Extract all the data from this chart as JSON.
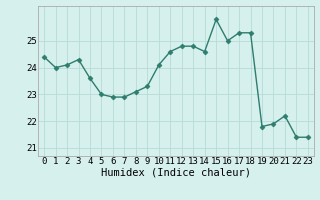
{
  "x": [
    0,
    1,
    2,
    3,
    4,
    5,
    6,
    7,
    8,
    9,
    10,
    11,
    12,
    13,
    14,
    15,
    16,
    17,
    18,
    19,
    20,
    21,
    22,
    23
  ],
  "y": [
    24.4,
    24.0,
    24.1,
    24.3,
    23.6,
    23.0,
    22.9,
    22.9,
    23.1,
    23.3,
    24.1,
    24.6,
    24.8,
    24.8,
    24.6,
    25.8,
    25.0,
    25.3,
    25.3,
    21.8,
    21.9,
    22.2,
    21.4,
    21.4
  ],
  "line_color": "#2e7d6e",
  "marker": "D",
  "marker_size": 2.5,
  "bg_color": "#d6f0ee",
  "grid_color": "#b8dbd8",
  "xlabel": "Humidex (Indice chaleur)",
  "xlabel_fontsize": 7.5,
  "tick_fontsize": 6.5,
  "ylim": [
    20.7,
    26.3
  ],
  "yticks": [
    21,
    22,
    23,
    24,
    25
  ],
  "xticks": [
    0,
    1,
    2,
    3,
    4,
    5,
    6,
    7,
    8,
    9,
    10,
    11,
    12,
    13,
    14,
    15,
    16,
    17,
    18,
    19,
    20,
    21,
    22,
    23
  ],
  "spine_color": "#aaaaaa",
  "line_width": 1.0
}
